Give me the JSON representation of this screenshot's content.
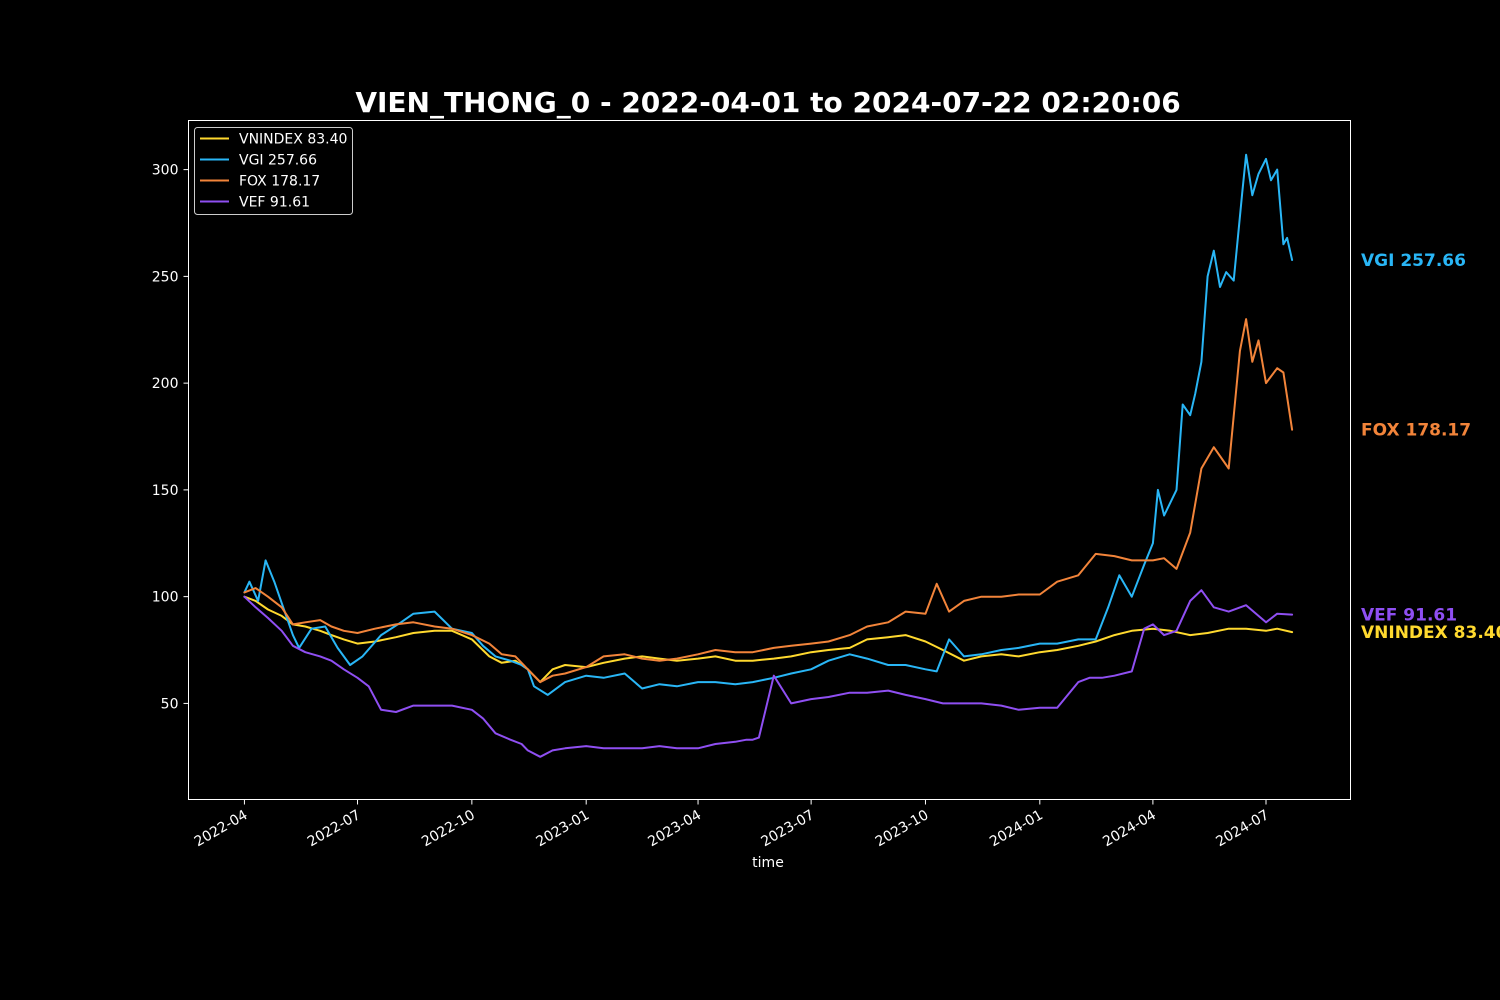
{
  "chart_data": {
    "type": "line",
    "title": "VIEN_THONG_0 - 2022-04-01 to 2024-07-22 02:20:06",
    "xlabel": "time",
    "ylabel": "",
    "x_type": "date",
    "xlim": [
      "2022-02-15",
      "2024-09-07"
    ],
    "ylim": [
      5,
      323
    ],
    "x_ticks": [
      "2022-04",
      "2022-07",
      "2022-10",
      "2023-01",
      "2023-04",
      "2023-07",
      "2023-10",
      "2024-01",
      "2024-04",
      "2024-07"
    ],
    "x_tick_dates": [
      "2022-04-01",
      "2022-07-01",
      "2022-10-01",
      "2023-01-01",
      "2023-04-01",
      "2023-07-01",
      "2023-10-01",
      "2024-01-01",
      "2024-04-01",
      "2024-07-01"
    ],
    "y_ticks": [
      50,
      100,
      150,
      200,
      250,
      300
    ],
    "grid": false,
    "legend_position": "top-left",
    "background": "#000000",
    "series": [
      {
        "name": "VNINDEX 83.40",
        "end_label": "VNINDEX 83.40",
        "color": "#FFD92E",
        "dates": [
          "2022-04-01",
          "2022-04-10",
          "2022-04-20",
          "2022-05-01",
          "2022-05-10",
          "2022-05-20",
          "2022-06-01",
          "2022-06-10",
          "2022-06-20",
          "2022-07-01",
          "2022-07-15",
          "2022-08-01",
          "2022-08-15",
          "2022-09-01",
          "2022-09-15",
          "2022-10-01",
          "2022-10-15",
          "2022-10-25",
          "2022-11-05",
          "2022-11-15",
          "2022-11-25",
          "2022-12-05",
          "2022-12-15",
          "2023-01-01",
          "2023-01-15",
          "2023-02-01",
          "2023-02-15",
          "2023-03-01",
          "2023-03-15",
          "2023-04-01",
          "2023-04-15",
          "2023-05-01",
          "2023-05-15",
          "2023-06-01",
          "2023-06-15",
          "2023-07-01",
          "2023-07-15",
          "2023-08-01",
          "2023-08-15",
          "2023-09-01",
          "2023-09-15",
          "2023-10-01",
          "2023-10-15",
          "2023-11-01",
          "2023-11-15",
          "2023-12-01",
          "2023-12-15",
          "2024-01-01",
          "2024-01-15",
          "2024-02-01",
          "2024-02-15",
          "2024-03-01",
          "2024-03-15",
          "2024-04-01",
          "2024-04-15",
          "2024-05-01",
          "2024-05-15",
          "2024-06-01",
          "2024-06-15",
          "2024-07-01",
          "2024-07-10",
          "2024-07-22"
        ],
        "values": [
          100,
          98,
          94,
          91,
          87,
          86,
          84,
          82,
          80,
          78,
          79,
          81,
          83,
          84,
          84,
          80,
          72,
          69,
          70,
          66,
          60,
          66,
          68,
          67,
          69,
          71,
          72,
          71,
          70,
          71,
          72,
          70,
          70,
          71,
          72,
          74,
          75,
          76,
          80,
          81,
          82,
          79,
          75,
          70,
          72,
          73,
          72,
          74,
          75,
          77,
          79,
          82,
          84,
          85,
          84,
          82,
          83,
          85,
          85,
          84,
          85,
          83.4
        ]
      },
      {
        "name": "VGI 257.66",
        "end_label": "VGI 257.66",
        "color": "#29B6F6",
        "dates": [
          "2022-04-01",
          "2022-04-05",
          "2022-04-12",
          "2022-04-18",
          "2022-04-25",
          "2022-05-01",
          "2022-05-10",
          "2022-05-15",
          "2022-05-25",
          "2022-06-05",
          "2022-06-15",
          "2022-06-25",
          "2022-07-05",
          "2022-07-20",
          "2022-08-05",
          "2022-08-15",
          "2022-09-01",
          "2022-09-15",
          "2022-10-01",
          "2022-10-10",
          "2022-10-20",
          "2022-11-01",
          "2022-11-10",
          "2022-11-15",
          "2022-11-20",
          "2022-12-01",
          "2022-12-15",
          "2023-01-01",
          "2023-01-15",
          "2023-02-01",
          "2023-02-15",
          "2023-03-01",
          "2023-03-15",
          "2023-04-01",
          "2023-04-15",
          "2023-05-01",
          "2023-05-15",
          "2023-06-01",
          "2023-06-15",
          "2023-07-01",
          "2023-07-15",
          "2023-08-01",
          "2023-08-15",
          "2023-09-01",
          "2023-09-15",
          "2023-10-01",
          "2023-10-10",
          "2023-10-20",
          "2023-11-01",
          "2023-11-15",
          "2023-12-01",
          "2023-12-15",
          "2024-01-01",
          "2024-01-15",
          "2024-02-01",
          "2024-02-15",
          "2024-02-25",
          "2024-03-05",
          "2024-03-15",
          "2024-03-25",
          "2024-04-01",
          "2024-04-05",
          "2024-04-10",
          "2024-04-20",
          "2024-04-25",
          "2024-05-01",
          "2024-05-05",
          "2024-05-10",
          "2024-05-15",
          "2024-05-20",
          "2024-05-25",
          "2024-05-30",
          "2024-06-05",
          "2024-06-12",
          "2024-06-15",
          "2024-06-20",
          "2024-06-25",
          "2024-07-01",
          "2024-07-05",
          "2024-07-10",
          "2024-07-15",
          "2024-07-18",
          "2024-07-22"
        ],
        "values": [
          102,
          107,
          98,
          117,
          107,
          97,
          82,
          76,
          85,
          86,
          76,
          68,
          72,
          82,
          88,
          92,
          93,
          85,
          83,
          77,
          72,
          70,
          68,
          66,
          58,
          54,
          60,
          63,
          62,
          64,
          57,
          59,
          58,
          60,
          60,
          59,
          60,
          62,
          64,
          66,
          70,
          73,
          71,
          68,
          68,
          66,
          65,
          80,
          72,
          73,
          75,
          76,
          78,
          78,
          80,
          80,
          95,
          110,
          100,
          115,
          125,
          150,
          138,
          150,
          190,
          185,
          195,
          210,
          250,
          262,
          245,
          252,
          248,
          290,
          307,
          288,
          298,
          305,
          295,
          300,
          265,
          268,
          257.66
        ]
      },
      {
        "name": "FOX 178.17",
        "end_label": "FOX 178.17",
        "color": "#F2843A",
        "dates": [
          "2022-04-01",
          "2022-04-10",
          "2022-04-20",
          "2022-05-01",
          "2022-05-10",
          "2022-05-20",
          "2022-06-01",
          "2022-06-10",
          "2022-06-20",
          "2022-07-01",
          "2022-07-15",
          "2022-08-01",
          "2022-08-15",
          "2022-09-01",
          "2022-09-15",
          "2022-10-01",
          "2022-10-15",
          "2022-10-25",
          "2022-11-05",
          "2022-11-15",
          "2022-11-25",
          "2022-12-05",
          "2022-12-15",
          "2023-01-01",
          "2023-01-15",
          "2023-02-01",
          "2023-02-15",
          "2023-03-01",
          "2023-03-15",
          "2023-04-01",
          "2023-04-15",
          "2023-05-01",
          "2023-05-15",
          "2023-06-01",
          "2023-06-15",
          "2023-07-01",
          "2023-07-15",
          "2023-08-01",
          "2023-08-15",
          "2023-09-01",
          "2023-09-15",
          "2023-10-01",
          "2023-10-10",
          "2023-10-20",
          "2023-11-01",
          "2023-11-15",
          "2023-12-01",
          "2023-12-15",
          "2024-01-01",
          "2024-01-15",
          "2024-02-01",
          "2024-02-15",
          "2024-03-01",
          "2024-03-15",
          "2024-04-01",
          "2024-04-10",
          "2024-04-20",
          "2024-05-01",
          "2024-05-10",
          "2024-05-20",
          "2024-06-01",
          "2024-06-10",
          "2024-06-15",
          "2024-06-20",
          "2024-06-25",
          "2024-07-01",
          "2024-07-10",
          "2024-07-15",
          "2024-07-22"
        ],
        "values": [
          102,
          104,
          100,
          95,
          87,
          88,
          89,
          86,
          84,
          83,
          85,
          87,
          88,
          86,
          85,
          82,
          78,
          73,
          72,
          66,
          60,
          63,
          64,
          67,
          72,
          73,
          71,
          70,
          71,
          73,
          75,
          74,
          74,
          76,
          77,
          78,
          79,
          82,
          86,
          88,
          93,
          92,
          106,
          93,
          98,
          100,
          100,
          101,
          101,
          107,
          110,
          120,
          119,
          117,
          117,
          118,
          113,
          130,
          160,
          170,
          160,
          215,
          230,
          210,
          220,
          200,
          207,
          205,
          178.17
        ]
      },
      {
        "name": "VEF 91.61",
        "end_label": "VEF 91.61",
        "color": "#8F4FF2",
        "dates": [
          "2022-04-01",
          "2022-04-10",
          "2022-04-20",
          "2022-05-01",
          "2022-05-10",
          "2022-05-20",
          "2022-06-01",
          "2022-06-10",
          "2022-06-20",
          "2022-07-01",
          "2022-07-10",
          "2022-07-20",
          "2022-08-01",
          "2022-08-15",
          "2022-09-01",
          "2022-09-15",
          "2022-10-01",
          "2022-10-10",
          "2022-10-20",
          "2022-11-01",
          "2022-11-10",
          "2022-11-15",
          "2022-11-25",
          "2022-12-05",
          "2022-12-15",
          "2023-01-01",
          "2023-01-15",
          "2023-02-01",
          "2023-02-15",
          "2023-03-01",
          "2023-03-15",
          "2023-04-01",
          "2023-04-15",
          "2023-05-01",
          "2023-05-10",
          "2023-05-15",
          "2023-05-20",
          "2023-06-01",
          "2023-06-15",
          "2023-07-01",
          "2023-07-15",
          "2023-08-01",
          "2023-08-15",
          "2023-09-01",
          "2023-09-15",
          "2023-10-01",
          "2023-10-15",
          "2023-11-01",
          "2023-11-15",
          "2023-12-01",
          "2023-12-15",
          "2024-01-01",
          "2024-01-15",
          "2024-02-01",
          "2024-02-10",
          "2024-02-20",
          "2024-03-01",
          "2024-03-15",
          "2024-03-25",
          "2024-04-01",
          "2024-04-10",
          "2024-04-20",
          "2024-05-01",
          "2024-05-10",
          "2024-05-20",
          "2024-06-01",
          "2024-06-15",
          "2024-07-01",
          "2024-07-10",
          "2024-07-22"
        ],
        "values": [
          100,
          95,
          90,
          84,
          77,
          74,
          72,
          70,
          66,
          62,
          58,
          47,
          46,
          49,
          49,
          49,
          47,
          43,
          36,
          33,
          31,
          28,
          25,
          28,
          29,
          30,
          29,
          29,
          29,
          30,
          29,
          29,
          31,
          32,
          33,
          33,
          34,
          63,
          50,
          52,
          53,
          55,
          55,
          56,
          54,
          52,
          50,
          50,
          50,
          49,
          47,
          48,
          48,
          60,
          62,
          62,
          63,
          65,
          85,
          87,
          82,
          84,
          98,
          103,
          95,
          93,
          96,
          88,
          92,
          91.61
        ]
      }
    ]
  }
}
